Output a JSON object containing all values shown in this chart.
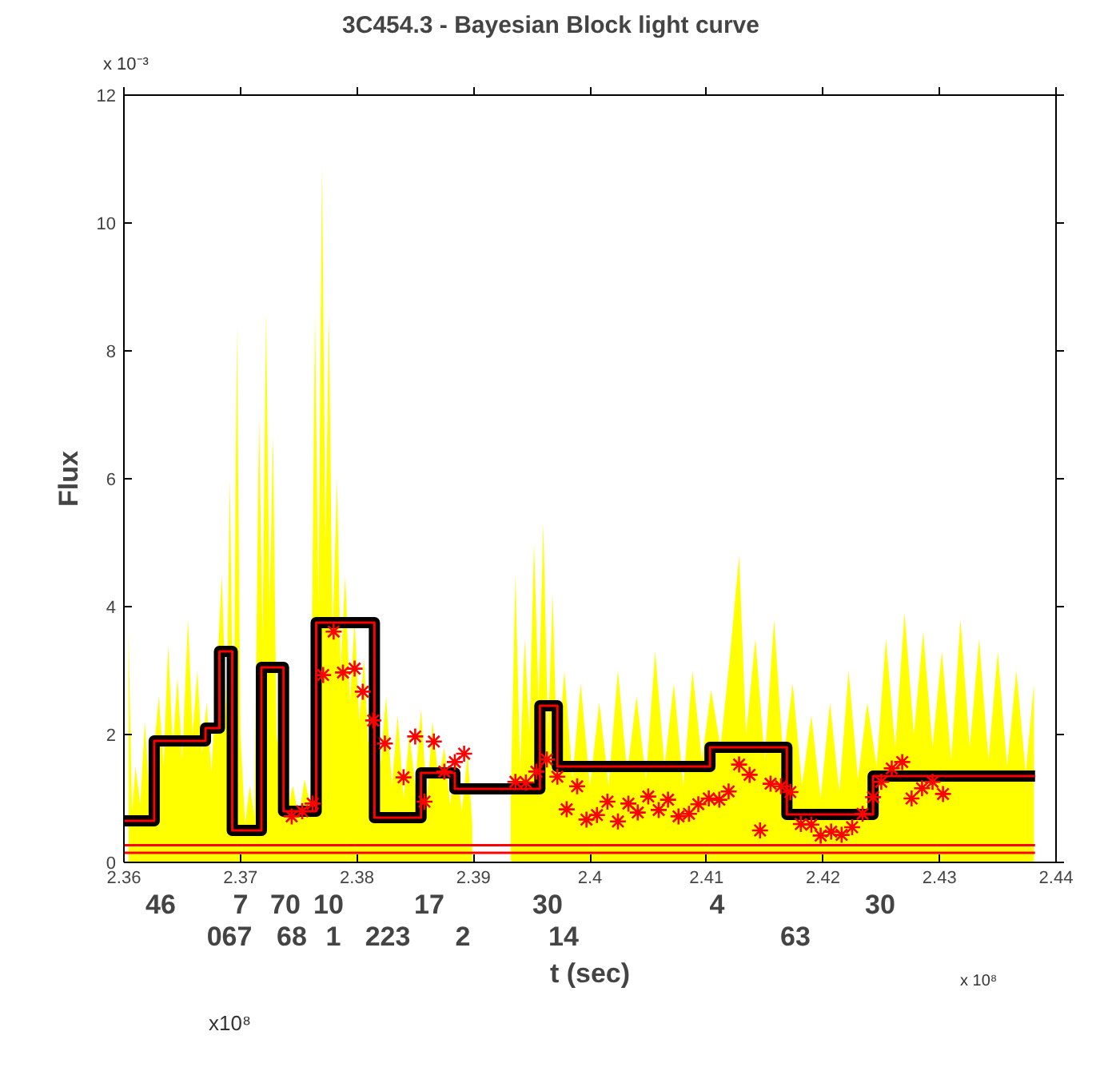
{
  "chart_data": {
    "type": "line",
    "title": "3C454.3 - Bayesian Block light curve",
    "xlabel": "t (sec)",
    "ylabel": "Flux",
    "xlim": [
      2.36,
      2.44
    ],
    "xticks": [
      2.36,
      2.37,
      2.38,
      2.39,
      2.4,
      2.41,
      2.42,
      2.43,
      2.44
    ],
    "ylim": [
      0,
      12
    ],
    "yticks": [
      0,
      2,
      4,
      6,
      8,
      10,
      12
    ],
    "grid": false,
    "series": [
      {
        "type": "area",
        "color": "#ffff00",
        "x": [
          2.3604,
          2.3607,
          2.361,
          2.3614,
          2.3618,
          2.3622,
          2.3626,
          2.363,
          2.3634,
          2.3638,
          2.3642,
          2.3646,
          2.365,
          2.3655,
          2.3659,
          2.3663,
          2.3667,
          2.3671,
          2.3675,
          2.368,
          2.3684,
          2.3688,
          2.3691,
          2.3694,
          2.3697,
          2.37,
          2.3704,
          2.3708,
          2.3712,
          2.3716,
          2.3719,
          2.3722,
          2.3725,
          2.3728,
          2.3731,
          2.3735,
          2.374,
          2.3745,
          2.375,
          2.3755,
          2.376,
          2.3764,
          2.3767,
          2.377,
          2.3773,
          2.3776,
          2.3779,
          2.3783,
          2.3786,
          2.379,
          2.3794,
          2.3798,
          2.3802,
          2.3806,
          2.381,
          2.3815,
          2.382,
          2.3825,
          2.383,
          2.3835,
          2.384,
          2.3845,
          2.385,
          2.3855,
          2.386,
          2.3865,
          2.387,
          2.3875,
          2.388,
          2.3885,
          2.389,
          2.3895,
          2.3899,
          2.3915,
          2.3932,
          2.3936,
          2.394,
          2.3944,
          2.3948,
          2.3952,
          2.3956,
          2.396,
          2.3964,
          2.3968,
          2.3972,
          2.3978,
          2.3985,
          2.3992,
          2.4,
          2.4008,
          2.4016,
          2.4024,
          2.4032,
          2.404,
          2.4048,
          2.4056,
          2.4064,
          2.4072,
          2.408,
          2.4088,
          2.4096,
          2.4104,
          2.4112,
          2.412,
          2.4128,
          2.4134,
          2.4142,
          2.415,
          2.4158,
          2.4166,
          2.4174,
          2.4182,
          2.419,
          2.4198,
          2.4206,
          2.4214,
          2.4222,
          2.423,
          2.4238,
          2.4246,
          2.4254,
          2.4262,
          2.427,
          2.4278,
          2.4286,
          2.4294,
          2.4302,
          2.431,
          2.4318,
          2.4326,
          2.4334,
          2.4342,
          2.435,
          2.4358,
          2.4366,
          2.4374,
          2.4381
        ],
        "values": [
          3.6,
          0.8,
          1.5,
          0.9,
          2.2,
          1.0,
          1.8,
          2.6,
          1.5,
          3.4,
          1.8,
          2.9,
          1.6,
          3.8,
          2.0,
          3.0,
          1.7,
          2.5,
          1.4,
          3.0,
          4.5,
          2.2,
          6.0,
          1.5,
          8.4,
          2.0,
          0.6,
          1.2,
          0.7,
          7.0,
          3.5,
          8.6,
          4.0,
          6.7,
          2.0,
          1.5,
          0.8,
          1.2,
          0.7,
          1.3,
          0.9,
          8.6,
          4.0,
          10.9,
          5.0,
          8.6,
          3.5,
          6.0,
          3.0,
          4.5,
          2.5,
          3.8,
          2.2,
          3.2,
          1.8,
          2.8,
          1.5,
          2.6,
          1.2,
          2.3,
          1.0,
          2.0,
          1.2,
          2.4,
          1.0,
          2.2,
          1.3,
          1.8,
          0.9,
          1.6,
          0.8,
          1.7,
          0.6,
          null,
          1.0,
          4.5,
          1.5,
          3.5,
          2.0,
          5.0,
          2.5,
          5.3,
          2.0,
          4.2,
          1.5,
          3.0,
          1.3,
          2.8,
          1.2,
          2.5,
          1.2,
          3.0,
          1.4,
          2.6,
          1.3,
          3.3,
          1.5,
          2.8,
          1.2,
          3.0,
          1.6,
          2.7,
          1.8,
          3.2,
          4.8,
          2.0,
          3.5,
          1.6,
          3.8,
          1.6,
          2.8,
          1.2,
          2.3,
          1.0,
          2.5,
          1.1,
          3.0,
          1.3,
          2.5,
          1.5,
          3.5,
          1.8,
          3.9,
          2.0,
          3.6,
          1.8,
          3.3,
          1.6,
          3.8,
          1.8,
          3.5,
          1.6,
          3.3,
          1.5,
          3.0,
          1.4,
          2.8
        ]
      },
      {
        "type": "step",
        "color": "#000000",
        "x": [
          2.36,
          2.3626,
          2.367,
          2.3682,
          2.3693,
          2.3718,
          2.3737,
          2.3765,
          2.3815,
          2.3855,
          2.3884,
          2.3957,
          2.3972,
          2.4103,
          2.4169,
          2.4243,
          2.4382
        ],
        "values": [
          0.65,
          1.9,
          2.1,
          3.3,
          0.5,
          3.05,
          0.8,
          3.75,
          0.7,
          1.4,
          1.15,
          2.45,
          1.5,
          1.8,
          0.75,
          1.35,
          1.35
        ]
      },
      {
        "type": "step",
        "color": "#ff0000",
        "x": [
          2.36,
          2.3626,
          2.367,
          2.3682,
          2.3693,
          2.3718,
          2.3737,
          2.3765,
          2.3815,
          2.3855,
          2.3884,
          2.3957,
          2.3972,
          2.4103,
          2.4169,
          2.4243,
          2.4382
        ],
        "values": [
          0.65,
          1.9,
          2.1,
          3.3,
          0.5,
          3.05,
          0.8,
          3.75,
          0.7,
          1.4,
          1.15,
          2.45,
          1.5,
          1.8,
          0.75,
          1.35,
          1.35
        ]
      },
      {
        "color": "#ff0000",
        "x": [
          2.36,
          2.4382
        ],
        "values": [
          0.27,
          0.27
        ]
      },
      {
        "color": "#ff0000",
        "x": [
          2.36,
          2.4382
        ],
        "values": [
          0.15,
          0.15
        ]
      },
      {
        "type": "scatter",
        "color": "#ff0000",
        "marker": "cross",
        "x": [
          2.3744,
          2.3753,
          2.3762,
          2.3771,
          2.378,
          2.3788,
          2.3798,
          2.3805,
          2.3814,
          2.3824,
          2.384,
          2.385,
          2.3858,
          2.3866,
          2.3875,
          2.3884,
          2.3892,
          2.3936,
          2.3945,
          2.3954,
          2.3963,
          2.3972,
          2.398,
          2.3989,
          2.3997,
          2.4006,
          2.4015,
          2.4024,
          2.4033,
          2.4041,
          2.405,
          2.4059,
          2.4067,
          2.4076,
          2.4085,
          2.4093,
          2.4102,
          2.4111,
          2.4119,
          2.4128,
          2.4137,
          2.4146,
          2.4155,
          2.4164,
          2.4172,
          2.4181,
          2.419,
          2.4198,
          2.4207,
          2.4216,
          2.4225,
          2.4234,
          2.4243,
          2.425,
          2.4259,
          2.4268,
          2.4276,
          2.4285,
          2.4294,
          2.4303
        ],
        "values": [
          0.72,
          0.8,
          0.92,
          2.93,
          3.61,
          2.97,
          3.03,
          2.67,
          2.22,
          1.86,
          1.33,
          1.97,
          0.95,
          1.89,
          1.42,
          1.57,
          1.7,
          1.26,
          1.25,
          1.42,
          1.61,
          1.34,
          0.83,
          1.19,
          0.67,
          0.74,
          0.95,
          0.64,
          0.92,
          0.78,
          1.03,
          0.82,
          0.98,
          0.72,
          0.76,
          0.91,
          1.0,
          0.98,
          1.11,
          1.53,
          1.37,
          0.5,
          1.23,
          1.19,
          1.1,
          0.6,
          0.59,
          0.42,
          0.48,
          0.43,
          0.55,
          0.76,
          1.02,
          1.26,
          1.47,
          1.57,
          1.0,
          1.16,
          1.26,
          1.07
        ]
      }
    ],
    "annotations": [
      "x 10⁻³",
      "x 10⁸",
      "x10⁸",
      "46",
      "7",
      "70",
      "10",
      "17",
      "30",
      "4",
      "30",
      "067",
      "68",
      "1",
      "223",
      "2",
      "14",
      "63"
    ]
  }
}
